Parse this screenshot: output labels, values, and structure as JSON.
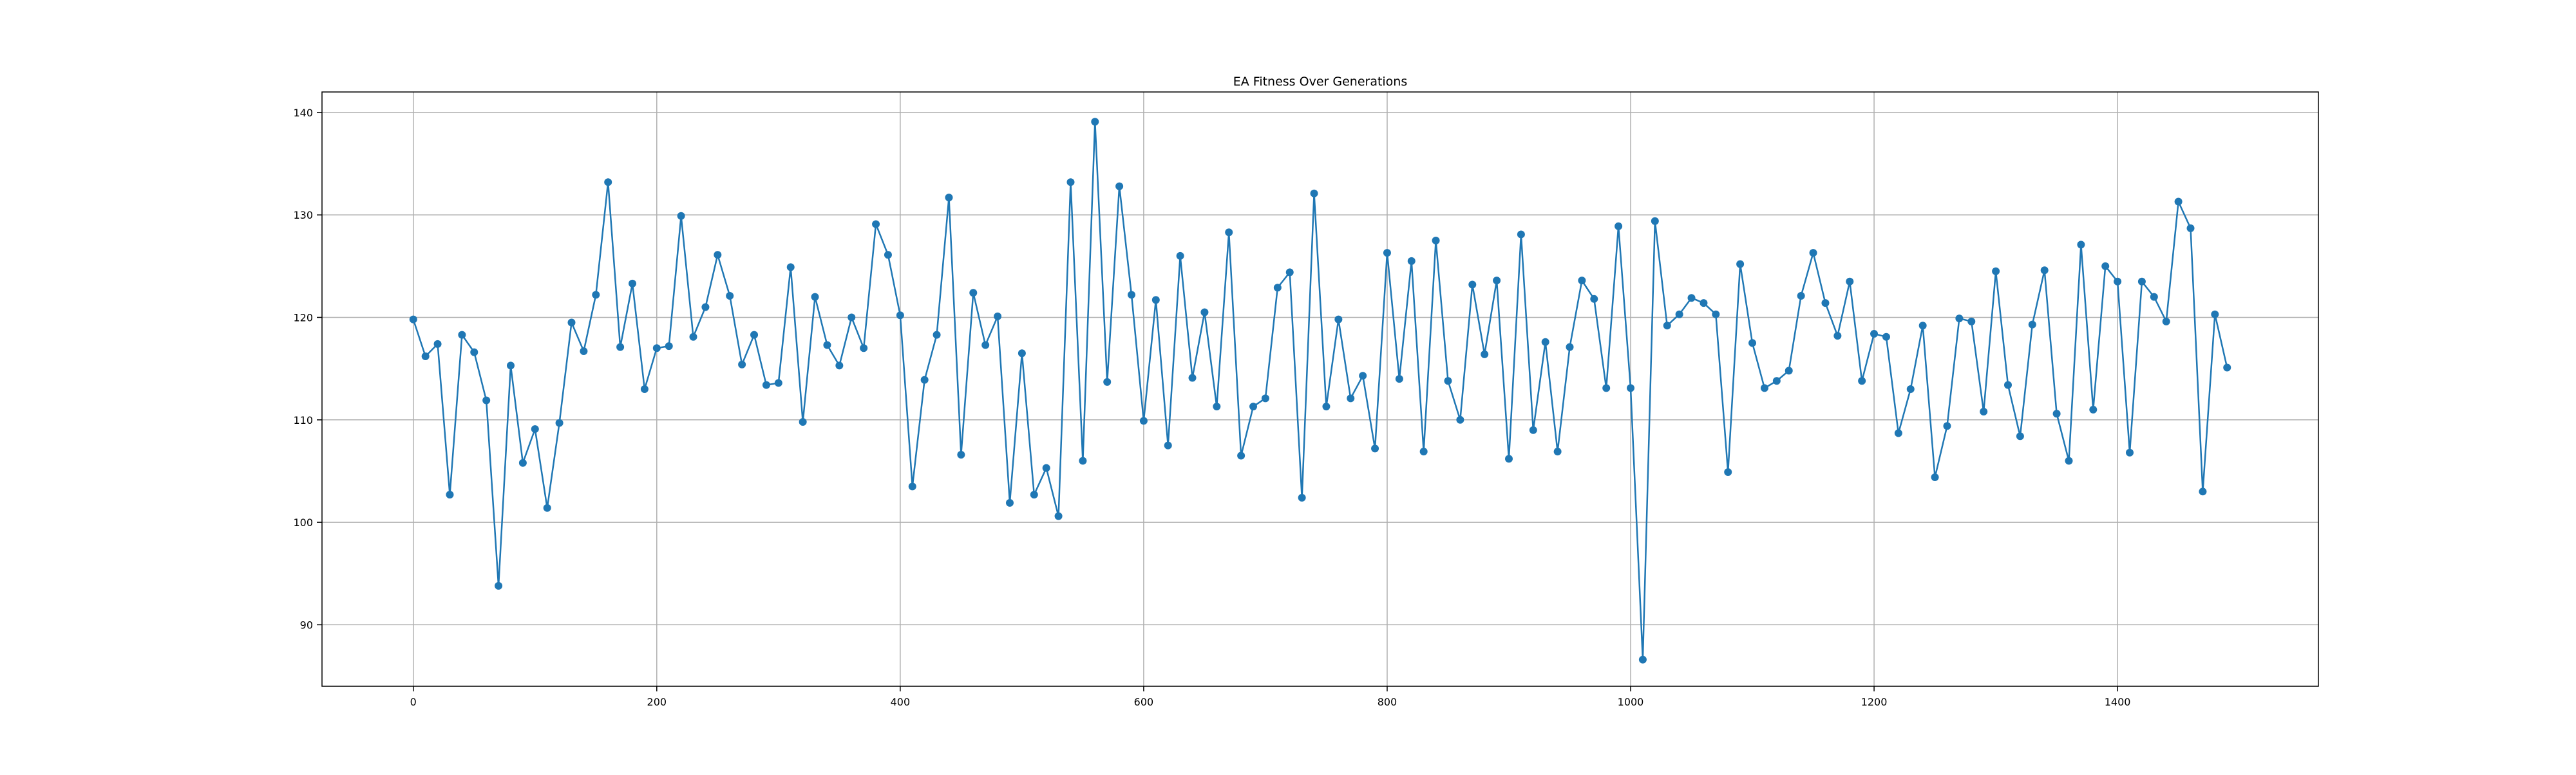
{
  "chart_data": {
    "type": "line",
    "title": "EA Fitness Over Generations",
    "xlabel": "",
    "ylabel": "",
    "xlim": [
      -75,
      1565
    ],
    "ylim": [
      84,
      142
    ],
    "xticks": [
      0,
      200,
      400,
      600,
      800,
      1000,
      1200,
      1400
    ],
    "yticks": [
      90,
      100,
      110,
      120,
      130,
      140
    ],
    "grid": true,
    "series": [
      {
        "color": "#1f77b4",
        "marker": "circle",
        "x": [
          0,
          10,
          20,
          30,
          40,
          50,
          60,
          70,
          80,
          90,
          100,
          110,
          120,
          130,
          140,
          150,
          160,
          170,
          180,
          190,
          200,
          210,
          220,
          230,
          240,
          250,
          260,
          270,
          280,
          290,
          300,
          310,
          320,
          330,
          340,
          350,
          360,
          370,
          380,
          390,
          400,
          410,
          420,
          430,
          440,
          450,
          460,
          470,
          480,
          490,
          500,
          510,
          520,
          530,
          540,
          550,
          560,
          570,
          580,
          590,
          600,
          610,
          620,
          630,
          640,
          650,
          660,
          670,
          680,
          690,
          700,
          710,
          720,
          730,
          740,
          750,
          760,
          770,
          780,
          790,
          800,
          810,
          820,
          830,
          840,
          850,
          860,
          870,
          880,
          890,
          900,
          910,
          920,
          930,
          940,
          950,
          960,
          970,
          980,
          990,
          1000,
          1010,
          1020,
          1030,
          1040,
          1050,
          1060,
          1070,
          1080,
          1090,
          1100,
          1110,
          1120,
          1130,
          1140,
          1150,
          1160,
          1170,
          1180,
          1190,
          1200,
          1210,
          1220,
          1230,
          1240,
          1250,
          1260,
          1270,
          1280,
          1290,
          1300,
          1310,
          1320,
          1330,
          1340,
          1350,
          1360,
          1370,
          1380,
          1390,
          1400,
          1410,
          1420,
          1430,
          1440,
          1450,
          1460,
          1470,
          1480,
          1490
        ],
        "y": [
          119.8,
          116.2,
          117.4,
          102.7,
          118.3,
          116.6,
          111.9,
          93.8,
          115.3,
          105.8,
          109.1,
          101.4,
          109.7,
          119.5,
          116.7,
          122.2,
          133.2,
          117.1,
          123.3,
          113.0,
          117.0,
          117.2,
          129.9,
          118.1,
          121.0,
          126.1,
          122.1,
          115.4,
          118.3,
          113.4,
          113.6,
          124.9,
          109.8,
          122.0,
          117.3,
          115.3,
          120.0,
          117.0,
          129.1,
          126.1,
          120.2,
          103.5,
          113.9,
          118.3,
          131.7,
          106.6,
          122.4,
          117.3,
          120.1,
          101.9,
          116.5,
          102.7,
          105.3,
          100.6,
          133.2,
          106.0,
          139.1,
          113.7,
          132.8,
          122.2,
          109.9,
          121.7,
          107.5,
          126.0,
          114.1,
          120.5,
          111.3,
          128.3,
          106.5,
          111.3,
          112.1,
          122.9,
          124.4,
          102.4,
          132.1,
          111.3,
          119.8,
          112.1,
          114.3,
          107.2,
          126.3,
          114.0,
          125.5,
          106.9,
          127.5,
          113.8,
          110.0,
          123.2,
          116.4,
          123.6,
          106.2,
          128.1,
          109.0,
          117.6,
          106.9,
          117.1,
          123.6,
          121.8,
          113.1,
          128.9,
          113.1,
          86.6,
          129.4,
          119.2,
          120.3,
          121.9,
          121.4,
          120.3,
          104.9,
          125.2,
          117.5,
          113.1,
          113.8,
          114.8,
          122.1,
          126.3,
          121.4,
          118.2,
          123.5,
          113.8,
          118.4,
          118.1,
          108.7,
          113.0,
          119.2,
          104.4,
          109.4,
          119.9,
          119.6,
          110.8,
          124.5,
          113.4,
          108.4,
          119.3,
          124.6,
          110.6,
          106.0,
          127.1,
          111.0,
          125.0,
          123.5,
          106.8,
          123.5,
          122.0,
          119.6,
          131.3,
          128.7,
          103.0,
          120.3,
          115.1
        ]
      }
    ]
  }
}
